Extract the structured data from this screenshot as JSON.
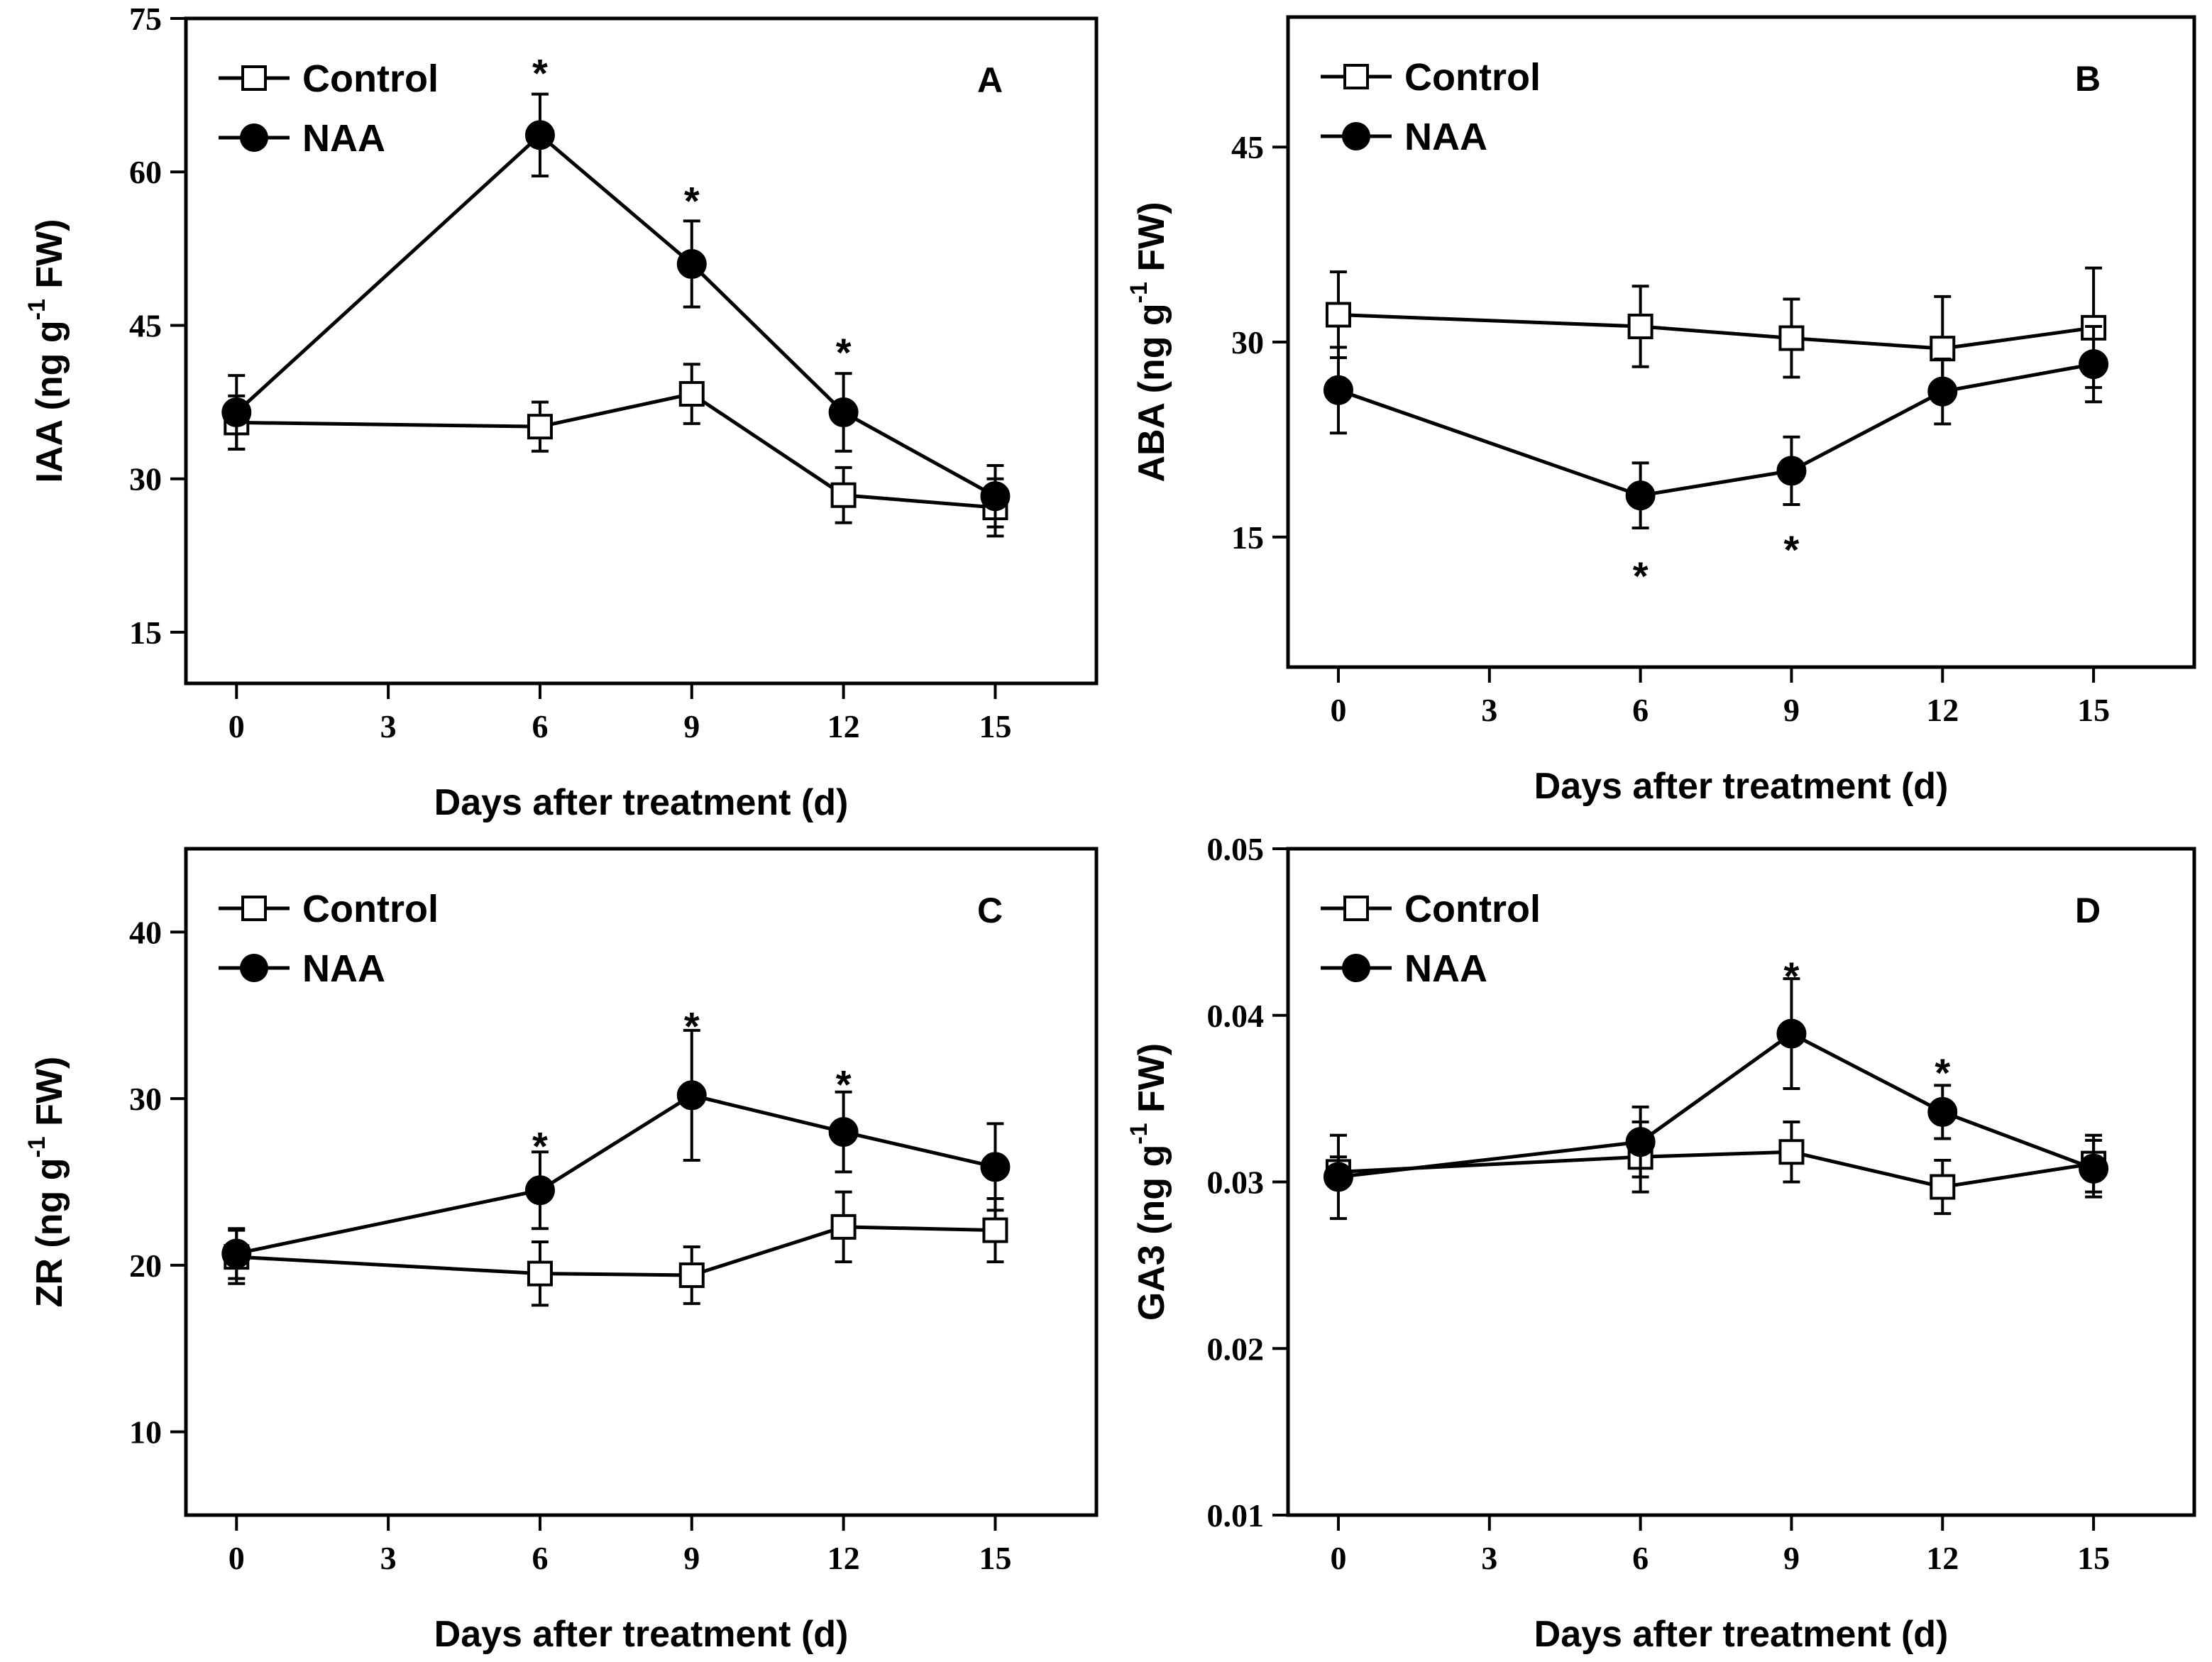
{
  "figure": {
    "series_colors": {
      "line": "#000000",
      "control_fill": "#ffffff",
      "naa_fill": "#000000"
    }
  },
  "chart_data": [
    {
      "type": "line",
      "panel": "A",
      "title": "",
      "xlabel": "Days after treatment (d)",
      "ylabel": {
        "main": "IAA (ng g",
        "sup": "-1",
        "tail": " FW)"
      },
      "xlim": [
        -1,
        17
      ],
      "ylim": [
        10,
        75
      ],
      "xticks": [
        0,
        3,
        6,
        9,
        12,
        15
      ],
      "yticks": [
        15,
        30,
        45,
        60,
        75
      ],
      "ytick_labels": [
        "15",
        "30",
        "45",
        "60",
        "75"
      ],
      "x": [
        0,
        6,
        9,
        12,
        15
      ],
      "legend": [
        "Control",
        "NAA"
      ],
      "legend_position": "top-left",
      "series": [
        {
          "name": "Control",
          "marker": "square-open",
          "values": [
            35.5,
            35.1,
            38.3,
            28.4,
            27.2
          ],
          "errors": [
            2.6,
            2.4,
            2.9,
            2.7,
            2.8
          ]
        },
        {
          "name": "NAA",
          "marker": "circle-filled",
          "values": [
            36.5,
            63.6,
            51.0,
            36.5,
            28.3
          ],
          "errors": [
            3.6,
            4.0,
            4.2,
            3.8,
            3.0
          ]
        }
      ],
      "significance": [
        {
          "x": 6,
          "y": 70.4,
          "text": "*"
        },
        {
          "x": 9,
          "y": 57.9,
          "text": "*"
        },
        {
          "x": 12,
          "y": 43.1,
          "text": "*"
        }
      ]
    },
    {
      "type": "line",
      "panel": "B",
      "title": "",
      "xlabel": "Days after treatment (d)",
      "ylabel": {
        "main": "ABA (ng g",
        "sup": "-1",
        "tail": " FW)"
      },
      "xlim": [
        -1,
        17
      ],
      "ylim": [
        5,
        55
      ],
      "xticks": [
        0,
        3,
        6,
        9,
        12,
        15
      ],
      "yticks": [
        15,
        30,
        45
      ],
      "ytick_labels": [
        "15",
        "30",
        "45"
      ],
      "x": [
        0,
        6,
        9,
        12,
        15
      ],
      "legend": [
        "Control",
        "NAA"
      ],
      "legend_position": "top-left",
      "series": [
        {
          "name": "Control",
          "marker": "square-open",
          "values": [
            32.1,
            31.2,
            30.3,
            29.5,
            31.1
          ],
          "errors": [
            3.3,
            3.1,
            3.0,
            4.0,
            4.6
          ]
        },
        {
          "name": "NAA",
          "marker": "circle-filled",
          "values": [
            26.3,
            18.2,
            20.1,
            26.2,
            28.3
          ],
          "errors": [
            3.3,
            2.5,
            2.6,
            2.5,
            2.9
          ]
        }
      ],
      "significance": [
        {
          "x": 6,
          "y": 12.6,
          "text": "*"
        },
        {
          "x": 9,
          "y": 14.6,
          "text": "*"
        }
      ]
    },
    {
      "type": "line",
      "panel": "C",
      "title": "",
      "xlabel": "Days after treatment (d)",
      "ylabel": {
        "main": "ZR (ng g",
        "sup": "-1",
        "tail": " FW)"
      },
      "xlim": [
        -1,
        17
      ],
      "ylim": [
        5,
        45
      ],
      "xticks": [
        0,
        3,
        6,
        9,
        12,
        15
      ],
      "yticks": [
        10,
        20,
        30,
        40
      ],
      "ytick_labels": [
        "10",
        "20",
        "30",
        "40"
      ],
      "x": [
        0,
        6,
        9,
        12,
        15
      ],
      "legend": [
        "Control",
        "NAA"
      ],
      "legend_position": "top-left",
      "series": [
        {
          "name": "Control",
          "marker": "square-open",
          "values": [
            20.5,
            19.5,
            19.4,
            22.3,
            22.1
          ],
          "errors": [
            1.6,
            1.9,
            1.7,
            2.1,
            1.9
          ]
        },
        {
          "name": "NAA",
          "marker": "circle-filled",
          "values": [
            20.7,
            24.5,
            30.2,
            28.0,
            25.9
          ],
          "errors": [
            1.5,
            2.3,
            3.9,
            2.4,
            2.6
          ]
        }
      ],
      "significance": [
        {
          "x": 6,
          "y": 27.6,
          "text": "*"
        },
        {
          "x": 9,
          "y": 34.8,
          "text": "*"
        },
        {
          "x": 12,
          "y": 31.3,
          "text": "*"
        }
      ]
    },
    {
      "type": "line",
      "panel": "D",
      "title": "",
      "xlabel": "Days after treatment (d)",
      "ylabel": {
        "main": "GA3 (ng g",
        "sup": "-1",
        "tail": " FW)"
      },
      "xlim": [
        -1,
        17
      ],
      "ylim": [
        0.01,
        0.05
      ],
      "xticks": [
        0,
        3,
        6,
        9,
        12,
        15
      ],
      "yticks": [
        0.01,
        0.02,
        0.03,
        0.04,
        0.05
      ],
      "ytick_labels": [
        "0.01",
        "0.02",
        "0.03",
        "0.04",
        "0.05"
      ],
      "x": [
        0,
        6,
        9,
        12,
        15
      ],
      "legend": [
        "Control",
        "NAA"
      ],
      "legend_position": "top-left",
      "series": [
        {
          "name": "Control",
          "marker": "square-open",
          "values": [
            0.0306,
            0.0315,
            0.0318,
            0.0297,
            0.0311
          ],
          "errors": [
            0.0009,
            0.0021,
            0.0018,
            0.0016,
            0.0017
          ]
        },
        {
          "name": "NAA",
          "marker": "circle-filled",
          "values": [
            0.0303,
            0.0324,
            0.0389,
            0.0342,
            0.0308
          ],
          "errors": [
            0.0025,
            0.0021,
            0.0033,
            0.0016,
            0.0017
          ]
        }
      ],
      "significance": [
        {
          "x": 9,
          "y": 0.0428,
          "text": "*"
        },
        {
          "x": 12,
          "y": 0.037,
          "text": "*"
        }
      ]
    }
  ]
}
